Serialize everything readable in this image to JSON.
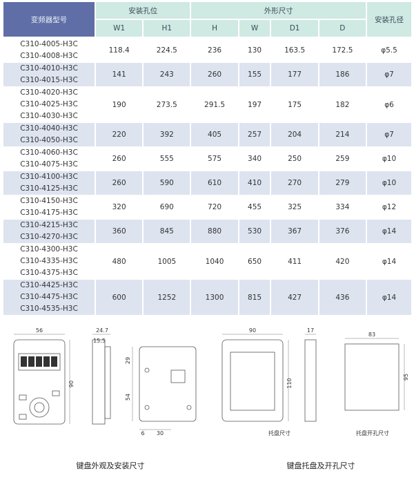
{
  "table": {
    "header": {
      "model": "变频器型号",
      "mount": "安装孔位",
      "outline": "外形尺寸",
      "hole": "安装孔径",
      "columns": [
        "W1",
        "H1",
        "H",
        "W",
        "D1",
        "D"
      ]
    },
    "rows": [
      {
        "models": [
          "C310-4005-H3C",
          "C310-4008-H3C"
        ],
        "values": [
          118.4,
          224.5,
          236,
          130,
          163.5,
          172.5
        ],
        "hole": "φ5.5"
      },
      {
        "models": [
          "C310-4010-H3C",
          "C310-4015-H3C"
        ],
        "values": [
          141,
          243,
          260,
          155,
          177,
          186
        ],
        "hole": "φ7"
      },
      {
        "models": [
          "C310-4020-H3C",
          "C310-4025-H3C",
          "C310-4030-H3C"
        ],
        "values": [
          190,
          273.5,
          291.5,
          197,
          175,
          182
        ],
        "hole": "φ6"
      },
      {
        "models": [
          "C310-4040-H3C",
          "C310-4050-H3C"
        ],
        "values": [
          220,
          392,
          405,
          257,
          204,
          214
        ],
        "hole": "φ7"
      },
      {
        "models": [
          "C310-4060-H3C",
          "C310-4075-H3C"
        ],
        "values": [
          260,
          555,
          575,
          340,
          250,
          259
        ],
        "hole": "φ10"
      },
      {
        "models": [
          "C310-4100-H3C",
          "C310-4125-H3C"
        ],
        "values": [
          260,
          590,
          610,
          410,
          270,
          279
        ],
        "hole": "φ10"
      },
      {
        "models": [
          "C310-4150-H3C",
          "C310-4175-H3C"
        ],
        "values": [
          320,
          690,
          720,
          455,
          325,
          334
        ],
        "hole": "φ12"
      },
      {
        "models": [
          "C310-4215-H3C",
          "C310-4270-H3C"
        ],
        "values": [
          360,
          845,
          880,
          530,
          367,
          376
        ],
        "hole": "φ14"
      },
      {
        "models": [
          "C310-4300-H3C",
          "C310-4335-H3C",
          "C310-4375-H3C"
        ],
        "values": [
          480,
          1005,
          1040,
          650,
          411,
          420
        ],
        "hole": "φ14"
      },
      {
        "models": [
          "C310-4425-H3C",
          "C310-4475-H3C",
          "C310-4535-H3C"
        ],
        "values": [
          600,
          1252,
          1300,
          815,
          427,
          436
        ],
        "hole": "φ14"
      }
    ]
  },
  "drawings": {
    "keypad": {
      "width": 56,
      "height": 90,
      "depth": 24.7,
      "step": 15.5,
      "hole_top": 29,
      "hole_span": 54,
      "hole_left": 6,
      "hole_width": 30,
      "caption": "键盘外观及安装尺寸"
    },
    "tray": {
      "width": 90,
      "height": 110,
      "depth": 17,
      "label": "托盘尺寸",
      "cut_width": 83,
      "cut_height": 95,
      "cut_label": "托盘开孔尺寸",
      "caption": "键盘托盘及开孔尺寸"
    }
  }
}
